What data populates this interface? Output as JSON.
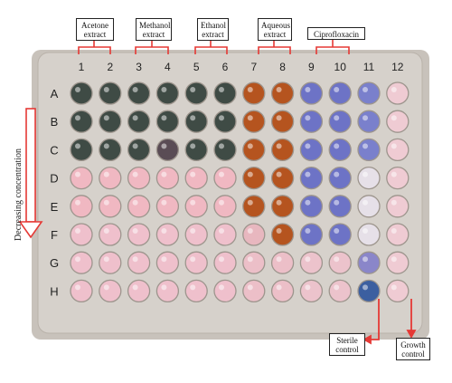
{
  "labels": {
    "acetone": "Acetone extract",
    "methanol": "Methanol extract",
    "ethanol": "Ethanol extract",
    "aqueous": "Aqueous extract",
    "cipro": "Ciprofloxacin",
    "sterile": "Sterile control",
    "growth": "Growth control",
    "axis": "Decreasing concentration"
  },
  "columns": [
    "1",
    "2",
    "3",
    "4",
    "5",
    "6",
    "7",
    "8",
    "9",
    "10",
    "11",
    "12"
  ],
  "rows": [
    "A",
    "B",
    "C",
    "D",
    "E",
    "F",
    "G",
    "H"
  ],
  "colors": {
    "bracket": "#e53935",
    "arrow": "#e53935",
    "plate": "#cfc9c2"
  }
}
